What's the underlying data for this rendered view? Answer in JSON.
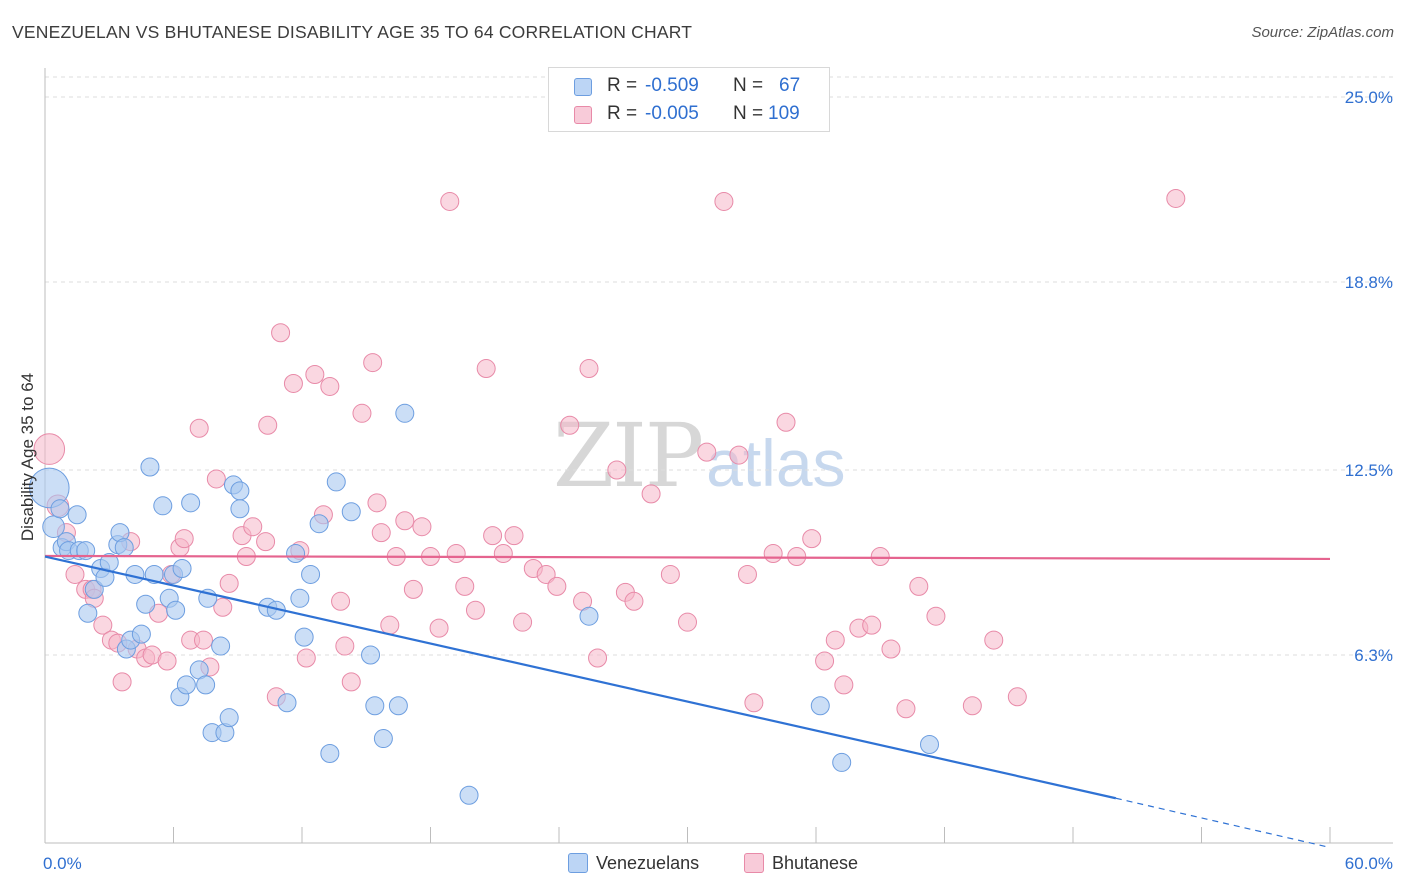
{
  "title": "VENEZUELAN VS BHUTANESE DISABILITY AGE 35 TO 64 CORRELATION CHART",
  "source": "Source: ZipAtlas.com",
  "watermark": {
    "zip": "ZIP",
    "atlas": "atlas"
  },
  "legend": {
    "rows": [
      {
        "r_label": "R =",
        "r_value": "-0.509",
        "n_label": "N =",
        "n_value": "67",
        "color": "#a9c8f0"
      },
      {
        "r_label": "R =",
        "r_value": "-0.005",
        "n_label": "N =",
        "n_value": "109",
        "color": "#f5b6c9"
      }
    ]
  },
  "bottom_legend": {
    "venezuelans": "Venezuelans",
    "bhutanese": "Bhutanese"
  },
  "colors": {
    "blue_fill": "#a9c8f0",
    "blue_stroke": "#6d9ee0",
    "blue_line": "#2f72d4",
    "pink_fill": "#f5b6c9",
    "pink_stroke": "#e88aa8",
    "pink_line": "#e5648f",
    "axis_label": "#2f6fd0",
    "grid": "#dedede"
  },
  "chart_data": {
    "type": "scatter",
    "title": "VENEZUELAN VS BHUTANESE DISABILITY AGE 35 TO 64 CORRELATION CHART",
    "xlabel": "",
    "ylabel": "Disability Age 35 to 64",
    "xlim": [
      0,
      60
    ],
    "ylim": [
      0,
      25
    ],
    "x_tick_labels": [
      "0.0%",
      "60.0%"
    ],
    "y_ticks": [
      6.3,
      12.5,
      18.8,
      25.0
    ],
    "y_tick_labels": [
      "6.3%",
      "12.5%",
      "18.8%",
      "25.0%"
    ],
    "grid": "horizontal dashed",
    "legend_position": "top-center",
    "series": [
      {
        "name": "Venezuelans",
        "r": -0.509,
        "n": 67,
        "trend": {
          "x0": 0,
          "y0": 9.6,
          "x1": 50,
          "y1": 1.5,
          "dashed_to_x": 60,
          "dashed_to_y": -0.15
        },
        "points": [
          [
            0.2,
            11.9,
            2.2
          ],
          [
            0.4,
            10.6,
            1.2
          ],
          [
            0.7,
            11.2,
            1
          ],
          [
            0.8,
            9.9,
            1
          ],
          [
            1.0,
            10.1,
            1
          ],
          [
            1.1,
            9.8,
            1
          ],
          [
            1.5,
            11.0,
            1
          ],
          [
            1.6,
            9.8,
            1
          ],
          [
            1.9,
            9.8,
            1
          ],
          [
            2.0,
            7.7,
            1
          ],
          [
            2.3,
            8.5,
            1
          ],
          [
            2.6,
            9.2,
            1
          ],
          [
            2.8,
            8.9,
            1
          ],
          [
            3.0,
            9.4,
            1
          ],
          [
            3.4,
            10.0,
            1
          ],
          [
            3.5,
            10.4,
            1
          ],
          [
            3.7,
            9.9,
            1
          ],
          [
            3.8,
            6.5,
            1
          ],
          [
            4.0,
            6.8,
            1
          ],
          [
            4.2,
            9.0,
            1
          ],
          [
            4.5,
            7.0,
            1
          ],
          [
            4.7,
            8.0,
            1
          ],
          [
            4.9,
            12.6,
            1
          ],
          [
            5.1,
            9.0,
            1
          ],
          [
            5.5,
            11.3,
            1
          ],
          [
            5.8,
            8.2,
            1
          ],
          [
            6.0,
            9.0,
            1
          ],
          [
            6.1,
            7.8,
            1
          ],
          [
            6.3,
            4.9,
            1
          ],
          [
            6.4,
            9.2,
            1
          ],
          [
            6.6,
            5.3,
            1
          ],
          [
            6.8,
            11.4,
            1
          ],
          [
            7.2,
            5.8,
            1
          ],
          [
            7.5,
            5.3,
            1
          ],
          [
            7.6,
            8.2,
            1
          ],
          [
            7.8,
            3.7,
            1
          ],
          [
            8.2,
            6.6,
            1
          ],
          [
            8.4,
            3.7,
            1
          ],
          [
            8.6,
            4.2,
            1
          ],
          [
            8.8,
            12.0,
            1
          ],
          [
            9.1,
            11.8,
            1
          ],
          [
            9.1,
            11.2,
            1
          ],
          [
            10.4,
            7.9,
            1
          ],
          [
            10.8,
            7.8,
            1
          ],
          [
            11.3,
            4.7,
            1
          ],
          [
            11.7,
            9.7,
            1
          ],
          [
            11.9,
            8.2,
            1
          ],
          [
            12.1,
            6.9,
            1
          ],
          [
            12.4,
            9.0,
            1
          ],
          [
            12.8,
            10.7,
            1
          ],
          [
            13.3,
            3.0,
            1
          ],
          [
            13.6,
            12.1,
            1
          ],
          [
            14.3,
            11.1,
            1
          ],
          [
            15.2,
            6.3,
            1
          ],
          [
            15.4,
            4.6,
            1
          ],
          [
            15.8,
            3.5,
            1
          ],
          [
            16.5,
            4.6,
            1
          ],
          [
            16.8,
            14.4,
            1
          ],
          [
            19.8,
            1.6,
            1
          ],
          [
            25.4,
            7.6,
            1
          ],
          [
            36.2,
            4.6,
            1
          ],
          [
            37.2,
            2.7,
            1
          ],
          [
            41.3,
            3.3,
            1
          ]
        ]
      },
      {
        "name": "Bhutanese",
        "r": -0.005,
        "n": 109,
        "trend": {
          "x0": 0,
          "y0": 9.62,
          "x1": 60,
          "y1": 9.52
        },
        "points": [
          [
            0.2,
            13.2,
            1.7
          ],
          [
            0.6,
            11.3,
            1.2
          ],
          [
            1.0,
            10.4,
            1
          ],
          [
            1.4,
            9.0,
            1
          ],
          [
            1.9,
            8.5,
            1
          ],
          [
            2.2,
            8.5,
            1
          ],
          [
            2.3,
            8.2,
            1
          ],
          [
            2.7,
            7.3,
            1
          ],
          [
            3.1,
            6.8,
            1
          ],
          [
            3.4,
            6.7,
            1
          ],
          [
            3.6,
            5.4,
            1
          ],
          [
            4.0,
            10.1,
            1
          ],
          [
            4.3,
            6.5,
            1
          ],
          [
            4.7,
            6.2,
            1
          ],
          [
            5.0,
            6.3,
            1
          ],
          [
            5.3,
            7.7,
            1
          ],
          [
            5.7,
            6.1,
            1
          ],
          [
            5.9,
            9.0,
            1
          ],
          [
            6.3,
            9.9,
            1
          ],
          [
            6.5,
            10.2,
            1
          ],
          [
            6.8,
            6.8,
            1
          ],
          [
            7.2,
            13.9,
            1
          ],
          [
            7.4,
            6.8,
            1
          ],
          [
            7.7,
            5.9,
            1
          ],
          [
            8.0,
            12.2,
            1
          ],
          [
            8.3,
            7.9,
            1
          ],
          [
            8.6,
            8.7,
            1
          ],
          [
            9.2,
            10.3,
            1
          ],
          [
            9.4,
            9.6,
            1
          ],
          [
            9.7,
            10.6,
            1
          ],
          [
            10.3,
            10.1,
            1
          ],
          [
            10.4,
            14.0,
            1
          ],
          [
            10.8,
            4.9,
            1
          ],
          [
            11.0,
            17.1,
            1
          ],
          [
            11.6,
            15.4,
            1
          ],
          [
            11.9,
            9.8,
            1
          ],
          [
            12.2,
            6.2,
            1
          ],
          [
            12.6,
            15.7,
            1
          ],
          [
            13.0,
            11.0,
            1
          ],
          [
            13.3,
            15.3,
            1
          ],
          [
            13.8,
            8.1,
            1
          ],
          [
            14.0,
            6.6,
            1
          ],
          [
            14.3,
            5.4,
            1
          ],
          [
            14.8,
            14.4,
            1
          ],
          [
            15.3,
            16.1,
            1
          ],
          [
            15.5,
            11.4,
            1
          ],
          [
            15.7,
            10.4,
            1
          ],
          [
            16.1,
            7.3,
            1
          ],
          [
            16.4,
            9.6,
            1
          ],
          [
            16.8,
            10.8,
            1
          ],
          [
            17.2,
            8.5,
            1
          ],
          [
            17.6,
            10.6,
            1
          ],
          [
            18.0,
            9.6,
            1
          ],
          [
            18.4,
            7.2,
            1
          ],
          [
            18.9,
            21.5,
            1
          ],
          [
            19.2,
            9.7,
            1
          ],
          [
            19.6,
            8.6,
            1
          ],
          [
            20.1,
            7.8,
            1
          ],
          [
            20.6,
            15.9,
            1
          ],
          [
            20.9,
            10.3,
            1
          ],
          [
            21.4,
            9.7,
            1
          ],
          [
            21.9,
            10.3,
            1
          ],
          [
            22.3,
            7.4,
            1
          ],
          [
            22.8,
            9.2,
            1
          ],
          [
            23.4,
            9.0,
            1
          ],
          [
            23.9,
            8.6,
            1
          ],
          [
            24.5,
            14.0,
            1
          ],
          [
            25.1,
            8.1,
            1
          ],
          [
            25.4,
            15.9,
            1
          ],
          [
            25.8,
            6.2,
            1
          ],
          [
            26.7,
            12.5,
            1
          ],
          [
            27.1,
            8.4,
            1
          ],
          [
            27.5,
            8.1,
            1
          ],
          [
            28.3,
            11.7,
            1
          ],
          [
            29.2,
            9.0,
            1
          ],
          [
            30.0,
            7.4,
            1
          ],
          [
            30.9,
            13.1,
            1
          ],
          [
            31.7,
            21.5,
            1
          ],
          [
            32.4,
            13.0,
            1
          ],
          [
            32.8,
            9.0,
            1
          ],
          [
            33.1,
            4.7,
            1
          ],
          [
            34.0,
            9.7,
            1
          ],
          [
            34.6,
            14.1,
            1
          ],
          [
            35.1,
            9.6,
            1
          ],
          [
            35.8,
            10.2,
            1
          ],
          [
            36.4,
            6.1,
            1
          ],
          [
            36.9,
            6.8,
            1
          ],
          [
            37.3,
            5.3,
            1
          ],
          [
            38.0,
            7.2,
            1
          ],
          [
            38.6,
            7.3,
            1
          ],
          [
            39.0,
            9.6,
            1
          ],
          [
            39.5,
            6.5,
            1
          ],
          [
            40.2,
            4.5,
            1
          ],
          [
            40.8,
            8.6,
            1
          ],
          [
            41.6,
            7.6,
            1
          ],
          [
            43.3,
            4.6,
            1
          ],
          [
            44.3,
            6.8,
            1
          ],
          [
            45.4,
            4.9,
            1
          ],
          [
            52.8,
            21.6,
            1
          ]
        ]
      }
    ]
  }
}
